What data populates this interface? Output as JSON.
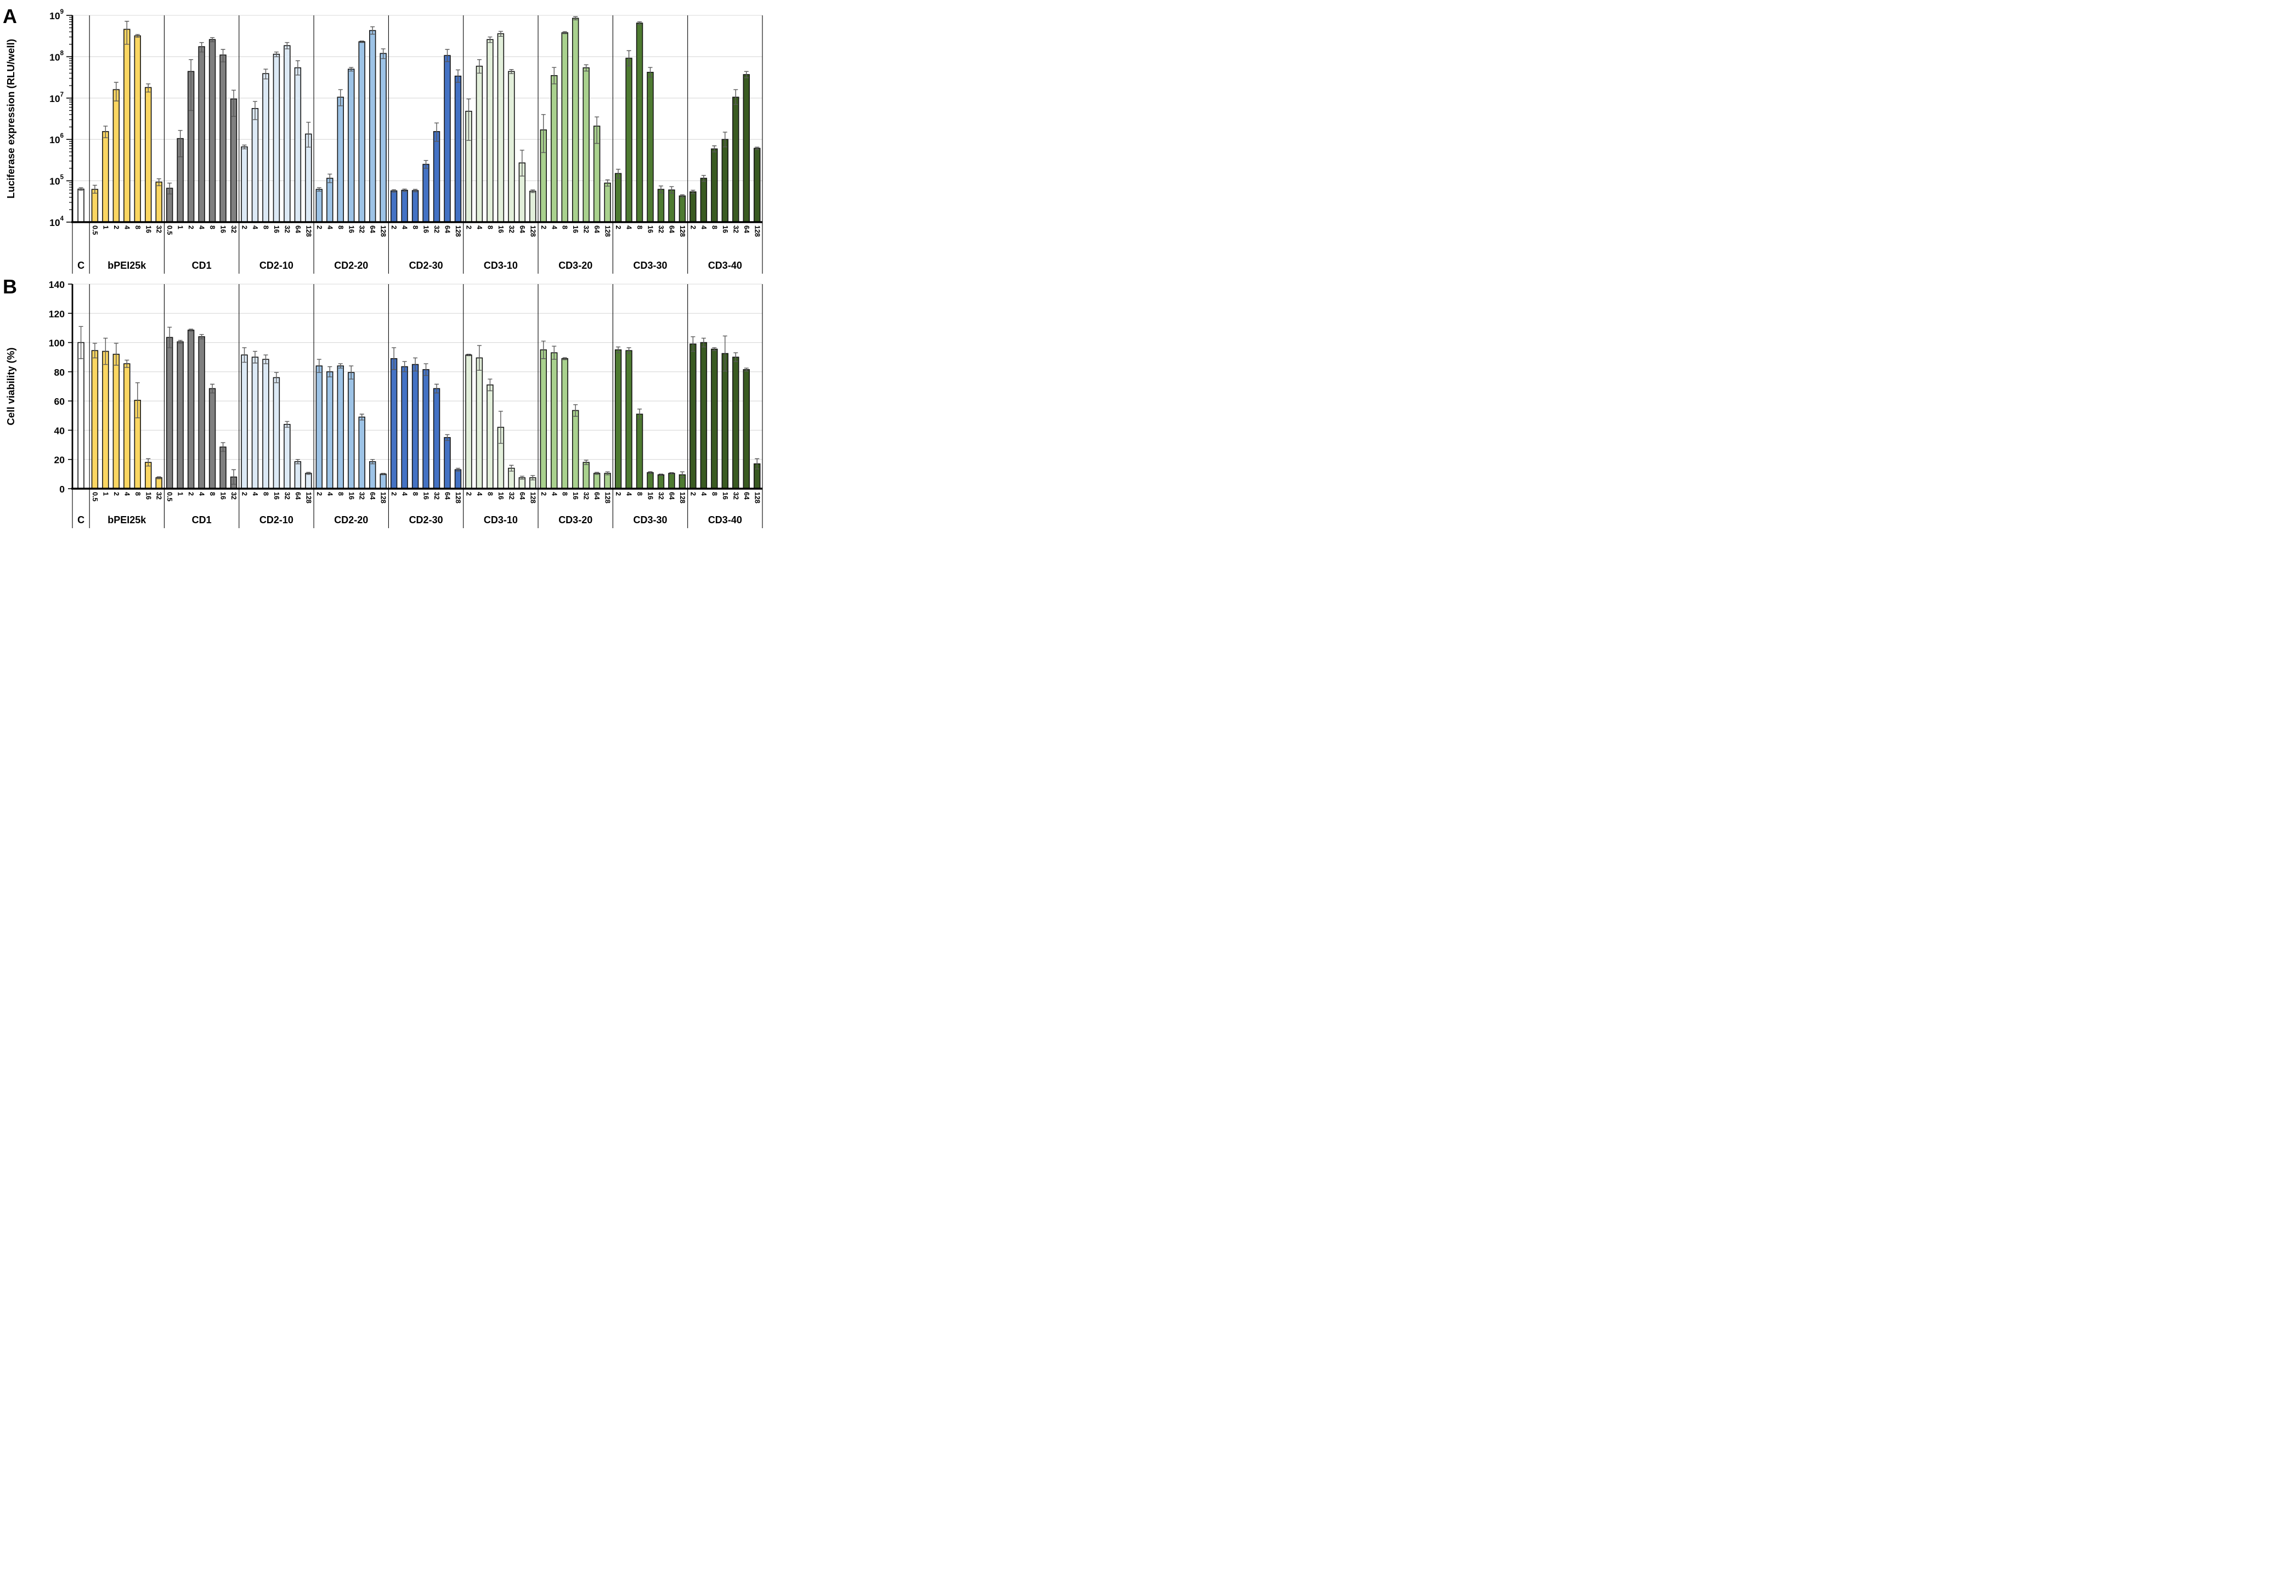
{
  "style": {
    "background": "#FFFFFF",
    "gridline_color": "#D9D9D9",
    "axis_color": "#000000",
    "bar_outline_color": "#141414",
    "error_bar_color": "#595959"
  },
  "chart_data": [
    {
      "type": "bar",
      "panel_label": "A",
      "ylabel": "Luciferase expression (RLU/well)",
      "yaxis": {
        "scale": "log",
        "min": 10000,
        "max": 1000000000,
        "tick_exponents": [
          4,
          5,
          6,
          7,
          8,
          9
        ],
        "tick_labels": [
          "10^4",
          "10^5",
          "10^6",
          "10^7",
          "10^8",
          "10^9"
        ],
        "grid": true
      },
      "legend": "none",
      "groups": [
        {
          "name": "C",
          "color": "#FFFFFF",
          "bars": [
            {
              "x": "",
              "v": 63000.0,
              "lo": 59000.0,
              "hi": 68000.0
            }
          ]
        },
        {
          "name": "bPEI25k",
          "color": "#FAD662",
          "bars": [
            {
              "x": "0.5",
              "v": 62000.0,
              "lo": 50000.0,
              "hi": 78000.0
            },
            {
              "x": "1",
              "v": 1550000.0,
              "lo": 1100000.0,
              "hi": 2100000.0
            },
            {
              "x": "2",
              "v": 16000000.0,
              "lo": 8500000.0,
              "hi": 24000000.0
            },
            {
              "x": "4",
              "v": 460000000.0,
              "lo": 200000000.0,
              "hi": 720000000.0
            },
            {
              "x": "8",
              "v": 320000000.0,
              "lo": 295000000.0,
              "hi": 345000000.0
            },
            {
              "x": "16",
              "v": 18000000.0,
              "lo": 14000000.0,
              "hi": 22000000.0
            },
            {
              "x": "32",
              "v": 93000.0,
              "lo": 76000.0,
              "hi": 112000.0
            }
          ]
        },
        {
          "name": "CD1",
          "color": "#7F7F7F",
          "bars": [
            {
              "x": "0.5",
              "v": 66000.0,
              "lo": 48000.0,
              "hi": 88000.0
            },
            {
              "x": "1",
              "v": 1050000.0,
              "lo": 380000.0,
              "hi": 1650000.0
            },
            {
              "x": "2",
              "v": 44000000.0,
              "lo": 5000000.0,
              "hi": 85000000.0
            },
            {
              "x": "4",
              "v": 175000000.0,
              "lo": 130000000.0,
              "hi": 220000000.0
            },
            {
              "x": "8",
              "v": 260000000.0,
              "lo": 230000000.0,
              "hi": 290000000.0
            },
            {
              "x": "16",
              "v": 110000000.0,
              "lo": 75000000.0,
              "hi": 150000000.0
            },
            {
              "x": "32",
              "v": 9500000.0,
              "lo": 3600000.0,
              "hi": 15500000.0
            }
          ]
        },
        {
          "name": "CD2-10",
          "color": "#DCE9F5",
          "bars": [
            {
              "x": "2",
              "v": 660000.0,
              "lo": 590000.0,
              "hi": 730000.0
            },
            {
              "x": "4",
              "v": 5600000.0,
              "lo": 3000000.0,
              "hi": 8300000.0
            },
            {
              "x": "8",
              "v": 39000000.0,
              "lo": 29000000.0,
              "hi": 50000000.0
            },
            {
              "x": "16",
              "v": 115000000.0,
              "lo": 100000000.0,
              "hi": 130000000.0
            },
            {
              "x": "32",
              "v": 185000000.0,
              "lo": 155000000.0,
              "hi": 220000000.0
            },
            {
              "x": "64",
              "v": 54000000.0,
              "lo": 36000000.0,
              "hi": 80000000.0
            },
            {
              "x": "128",
              "v": 1350000.0,
              "lo": 650000.0,
              "hi": 2600000.0
            }
          ]
        },
        {
          "name": "CD2-20",
          "color": "#9DC3E6",
          "bars": [
            {
              "x": "2",
              "v": 62000.0,
              "lo": 56000.0,
              "hi": 68000.0
            },
            {
              "x": "4",
              "v": 115000.0,
              "lo": 90000.0,
              "hi": 145000.0
            },
            {
              "x": "8",
              "v": 10500000.0,
              "lo": 6500000.0,
              "hi": 16000000.0
            },
            {
              "x": "16",
              "v": 50000000.0,
              "lo": 45000000.0,
              "hi": 55000000.0
            },
            {
              "x": "32",
              "v": 230000000.0,
              "lo": 220000000.0,
              "hi": 240000000.0
            },
            {
              "x": "64",
              "v": 430000000.0,
              "lo": 350000000.0,
              "hi": 530000000.0
            },
            {
              "x": "128",
              "v": 120000000.0,
              "lo": 90000000.0,
              "hi": 155000000.0
            }
          ]
        },
        {
          "name": "CD2-30",
          "color": "#4472C4",
          "bars": [
            {
              "x": "2",
              "v": 57000.0,
              "lo": 53000.0,
              "hi": 61000.0
            },
            {
              "x": "4",
              "v": 59000.0,
              "lo": 55000.0,
              "hi": 63000.0
            },
            {
              "x": "8",
              "v": 58000.0,
              "lo": 54000.0,
              "hi": 62000.0
            },
            {
              "x": "16",
              "v": 250000.0,
              "lo": 200000.0,
              "hi": 310000.0
            },
            {
              "x": "32",
              "v": 1550000.0,
              "lo": 900000.0,
              "hi": 2500000.0
            },
            {
              "x": "64",
              "v": 107000000.0,
              "lo": 76000000.0,
              "hi": 150000000.0
            },
            {
              "x": "128",
              "v": 34000000.0,
              "lo": 24000000.0,
              "hi": 48000000.0
            }
          ]
        },
        {
          "name": "CD3-10",
          "color": "#E2EFDA",
          "bars": [
            {
              "x": "2",
              "v": 4800000.0,
              "lo": 950000.0,
              "hi": 9500000.0
            },
            {
              "x": "4",
              "v": 59000000.0,
              "lo": 40000000.0,
              "hi": 85000000.0
            },
            {
              "x": "8",
              "v": 260000000.0,
              "lo": 220000000.0,
              "hi": 300000000.0
            },
            {
              "x": "16",
              "v": 360000000.0,
              "lo": 310000000.0,
              "hi": 410000000.0
            },
            {
              "x": "32",
              "v": 44000000.0,
              "lo": 39000000.0,
              "hi": 49000000.0
            },
            {
              "x": "64",
              "v": 270000.0,
              "lo": 130000.0,
              "hi": 550000.0
            },
            {
              "x": "128",
              "v": 56000.0,
              "lo": 52000.0,
              "hi": 60000.0
            }
          ]
        },
        {
          "name": "CD3-20",
          "color": "#A9D18E",
          "bars": [
            {
              "x": "2",
              "v": 1700000.0,
              "lo": 480000.0,
              "hi": 4000000.0
            },
            {
              "x": "4",
              "v": 35000000.0,
              "lo": 22000000.0,
              "hi": 55000000.0
            },
            {
              "x": "8",
              "v": 380000000.0,
              "lo": 360000000.0,
              "hi": 405000000.0
            },
            {
              "x": "16",
              "v": 850000000.0,
              "lo": 780000000.0,
              "hi": 930000000.0
            },
            {
              "x": "32",
              "v": 54000000.0,
              "lo": 45000000.0,
              "hi": 64000000.0
            },
            {
              "x": "64",
              "v": 2100000.0,
              "lo": 800000.0,
              "hi": 3500000.0
            },
            {
              "x": "128",
              "v": 88000.0,
              "lo": 74000.0,
              "hi": 105000.0
            }
          ]
        },
        {
          "name": "CD3-30",
          "color": "#4E7B31",
          "bars": [
            {
              "x": "2",
              "v": 150000.0,
              "lo": 115000.0,
              "hi": 190000.0
            },
            {
              "x": "4",
              "v": 92000000.0,
              "lo": 60000000.0,
              "hi": 140000000.0
            },
            {
              "x": "8",
              "v": 650000000.0,
              "lo": 600000000.0,
              "hi": 700000000.0
            },
            {
              "x": "16",
              "v": 42000000.0,
              "lo": 32000000.0,
              "hi": 55000000.0
            },
            {
              "x": "32",
              "v": 62000.0,
              "lo": 51000.0,
              "hi": 75000.0
            },
            {
              "x": "64",
              "v": 60000.0,
              "lo": 50000.0,
              "hi": 72000.0
            },
            {
              "x": "128",
              "v": 43000.0,
              "lo": 40000.0,
              "hi": 46000.0
            }
          ]
        },
        {
          "name": "CD3-40",
          "color": "#3A5B22",
          "bars": [
            {
              "x": "2",
              "v": 54000.0,
              "lo": 49000.0,
              "hi": 59000.0
            },
            {
              "x": "4",
              "v": 115000.0,
              "lo": 97000.0,
              "hi": 135000.0
            },
            {
              "x": "8",
              "v": 590000.0,
              "lo": 500000.0,
              "hi": 700000.0
            },
            {
              "x": "16",
              "v": 1000000.0,
              "lo": 660000.0,
              "hi": 1500000.0
            },
            {
              "x": "32",
              "v": 10500000.0,
              "lo": 7000000.0,
              "hi": 16000000.0
            },
            {
              "x": "64",
              "v": 37000000.0,
              "lo": 31000000.0,
              "hi": 44000000.0
            },
            {
              "x": "128",
              "v": 610000.0,
              "lo": 570000.0,
              "hi": 650000.0
            }
          ]
        }
      ]
    },
    {
      "type": "bar",
      "panel_label": "B",
      "ylabel": "Cell viability (%)",
      "yaxis": {
        "scale": "linear",
        "min": 0,
        "max": 140,
        "step": 20,
        "tick_labels": [
          "0",
          "20",
          "40",
          "60",
          "80",
          "100",
          "120",
          "140"
        ],
        "grid": true
      },
      "legend": "none",
      "groups": [
        {
          "name": "C",
          "color": "#FFFFFF",
          "bars": [
            {
              "x": "",
              "v": 100,
              "e": 11
            }
          ]
        },
        {
          "name": "bPEI25k",
          "color": "#FAD662",
          "bars": [
            {
              "x": "0.5",
              "v": 94.5,
              "e": 5
            },
            {
              "x": "1",
              "v": 94,
              "e": 9
            },
            {
              "x": "2",
              "v": 92,
              "e": 7.5
            },
            {
              "x": "4",
              "v": 85.5,
              "e": 2.5
            },
            {
              "x": "8",
              "v": 60.5,
              "e": 12
            },
            {
              "x": "16",
              "v": 18,
              "e": 2.5
            },
            {
              "x": "32",
              "v": 7.5,
              "e": 0.7
            }
          ]
        },
        {
          "name": "CD1",
          "color": "#7F7F7F",
          "bars": [
            {
              "x": "0.5",
              "v": 103.5,
              "e": 7
            },
            {
              "x": "1",
              "v": 100.5,
              "e": 1
            },
            {
              "x": "2",
              "v": 108.5,
              "e": 0.7
            },
            {
              "x": "4",
              "v": 104,
              "e": 1.5
            },
            {
              "x": "8",
              "v": 68.5,
              "e": 3
            },
            {
              "x": "16",
              "v": 28.5,
              "e": 3
            },
            {
              "x": "32",
              "v": 8,
              "e": 5
            }
          ]
        },
        {
          "name": "CD2-10",
          "color": "#DCE9F5",
          "bars": [
            {
              "x": "2",
              "v": 91.5,
              "e": 5
            },
            {
              "x": "4",
              "v": 90,
              "e": 4
            },
            {
              "x": "8",
              "v": 88.5,
              "e": 3
            },
            {
              "x": "16",
              "v": 76,
              "e": 3.5
            },
            {
              "x": "32",
              "v": 44,
              "e": 2
            },
            {
              "x": "64",
              "v": 18.5,
              "e": 1.5
            },
            {
              "x": "128",
              "v": 10.5,
              "e": 0.7
            }
          ]
        },
        {
          "name": "CD2-20",
          "color": "#9DC3E6",
          "bars": [
            {
              "x": "2",
              "v": 84,
              "e": 4.5
            },
            {
              "x": "4",
              "v": 80,
              "e": 3.5
            },
            {
              "x": "8",
              "v": 84,
              "e": 1.5
            },
            {
              "x": "16",
              "v": 79.5,
              "e": 4.5
            },
            {
              "x": "32",
              "v": 49,
              "e": 2
            },
            {
              "x": "64",
              "v": 18.5,
              "e": 1.5
            },
            {
              "x": "128",
              "v": 10,
              "e": 0.5
            }
          ]
        },
        {
          "name": "CD2-30",
          "color": "#4472C4",
          "bars": [
            {
              "x": "2",
              "v": 89,
              "e": 7.5
            },
            {
              "x": "4",
              "v": 83.5,
              "e": 3.5
            },
            {
              "x": "8",
              "v": 85,
              "e": 4.5
            },
            {
              "x": "16",
              "v": 81.5,
              "e": 4
            },
            {
              "x": "32",
              "v": 68.5,
              "e": 3
            },
            {
              "x": "64",
              "v": 35,
              "e": 2
            },
            {
              "x": "128",
              "v": 13,
              "e": 1
            }
          ]
        },
        {
          "name": "CD3-10",
          "color": "#E2EFDA",
          "bars": [
            {
              "x": "2",
              "v": 91.5,
              "e": 0.5
            },
            {
              "x": "4",
              "v": 89.5,
              "e": 8.5
            },
            {
              "x": "8",
              "v": 71,
              "e": 4
            },
            {
              "x": "16",
              "v": 42,
              "e": 11
            },
            {
              "x": "32",
              "v": 14,
              "e": 2
            },
            {
              "x": "64",
              "v": 7.5,
              "e": 1
            },
            {
              "x": "128",
              "v": 7.5,
              "e": 1.5
            }
          ]
        },
        {
          "name": "CD3-20",
          "color": "#A9D18E",
          "bars": [
            {
              "x": "2",
              "v": 95,
              "e": 6
            },
            {
              "x": "4",
              "v": 93,
              "e": 4.5
            },
            {
              "x": "8",
              "v": 89,
              "e": 0.7
            },
            {
              "x": "16",
              "v": 53.5,
              "e": 4
            },
            {
              "x": "32",
              "v": 18,
              "e": 1.5
            },
            {
              "x": "64",
              "v": 10.5,
              "e": 0.7
            },
            {
              "x": "128",
              "v": 10.5,
              "e": 1
            }
          ]
        },
        {
          "name": "CD3-30",
          "color": "#4E7B31",
          "bars": [
            {
              "x": "2",
              "v": 95,
              "e": 2
            },
            {
              "x": "4",
              "v": 94.5,
              "e": 2
            },
            {
              "x": "8",
              "v": 51,
              "e": 3.5
            },
            {
              "x": "16",
              "v": 11,
              "e": 0.7
            },
            {
              "x": "32",
              "v": 9.5,
              "e": 0.5
            },
            {
              "x": "64",
              "v": 10.5,
              "e": 0.5
            },
            {
              "x": "128",
              "v": 9.5,
              "e": 2
            }
          ]
        },
        {
          "name": "CD3-40",
          "color": "#3A5B22",
          "bars": [
            {
              "x": "2",
              "v": 99,
              "e": 5
            },
            {
              "x": "4",
              "v": 100,
              "e": 3
            },
            {
              "x": "8",
              "v": 95.5,
              "e": 1
            },
            {
              "x": "16",
              "v": 92.5,
              "e": 12
            },
            {
              "x": "32",
              "v": 90,
              "e": 3
            },
            {
              "x": "64",
              "v": 81.5,
              "e": 1
            },
            {
              "x": "128",
              "v": 17,
              "e": 3.5
            }
          ]
        }
      ]
    }
  ]
}
